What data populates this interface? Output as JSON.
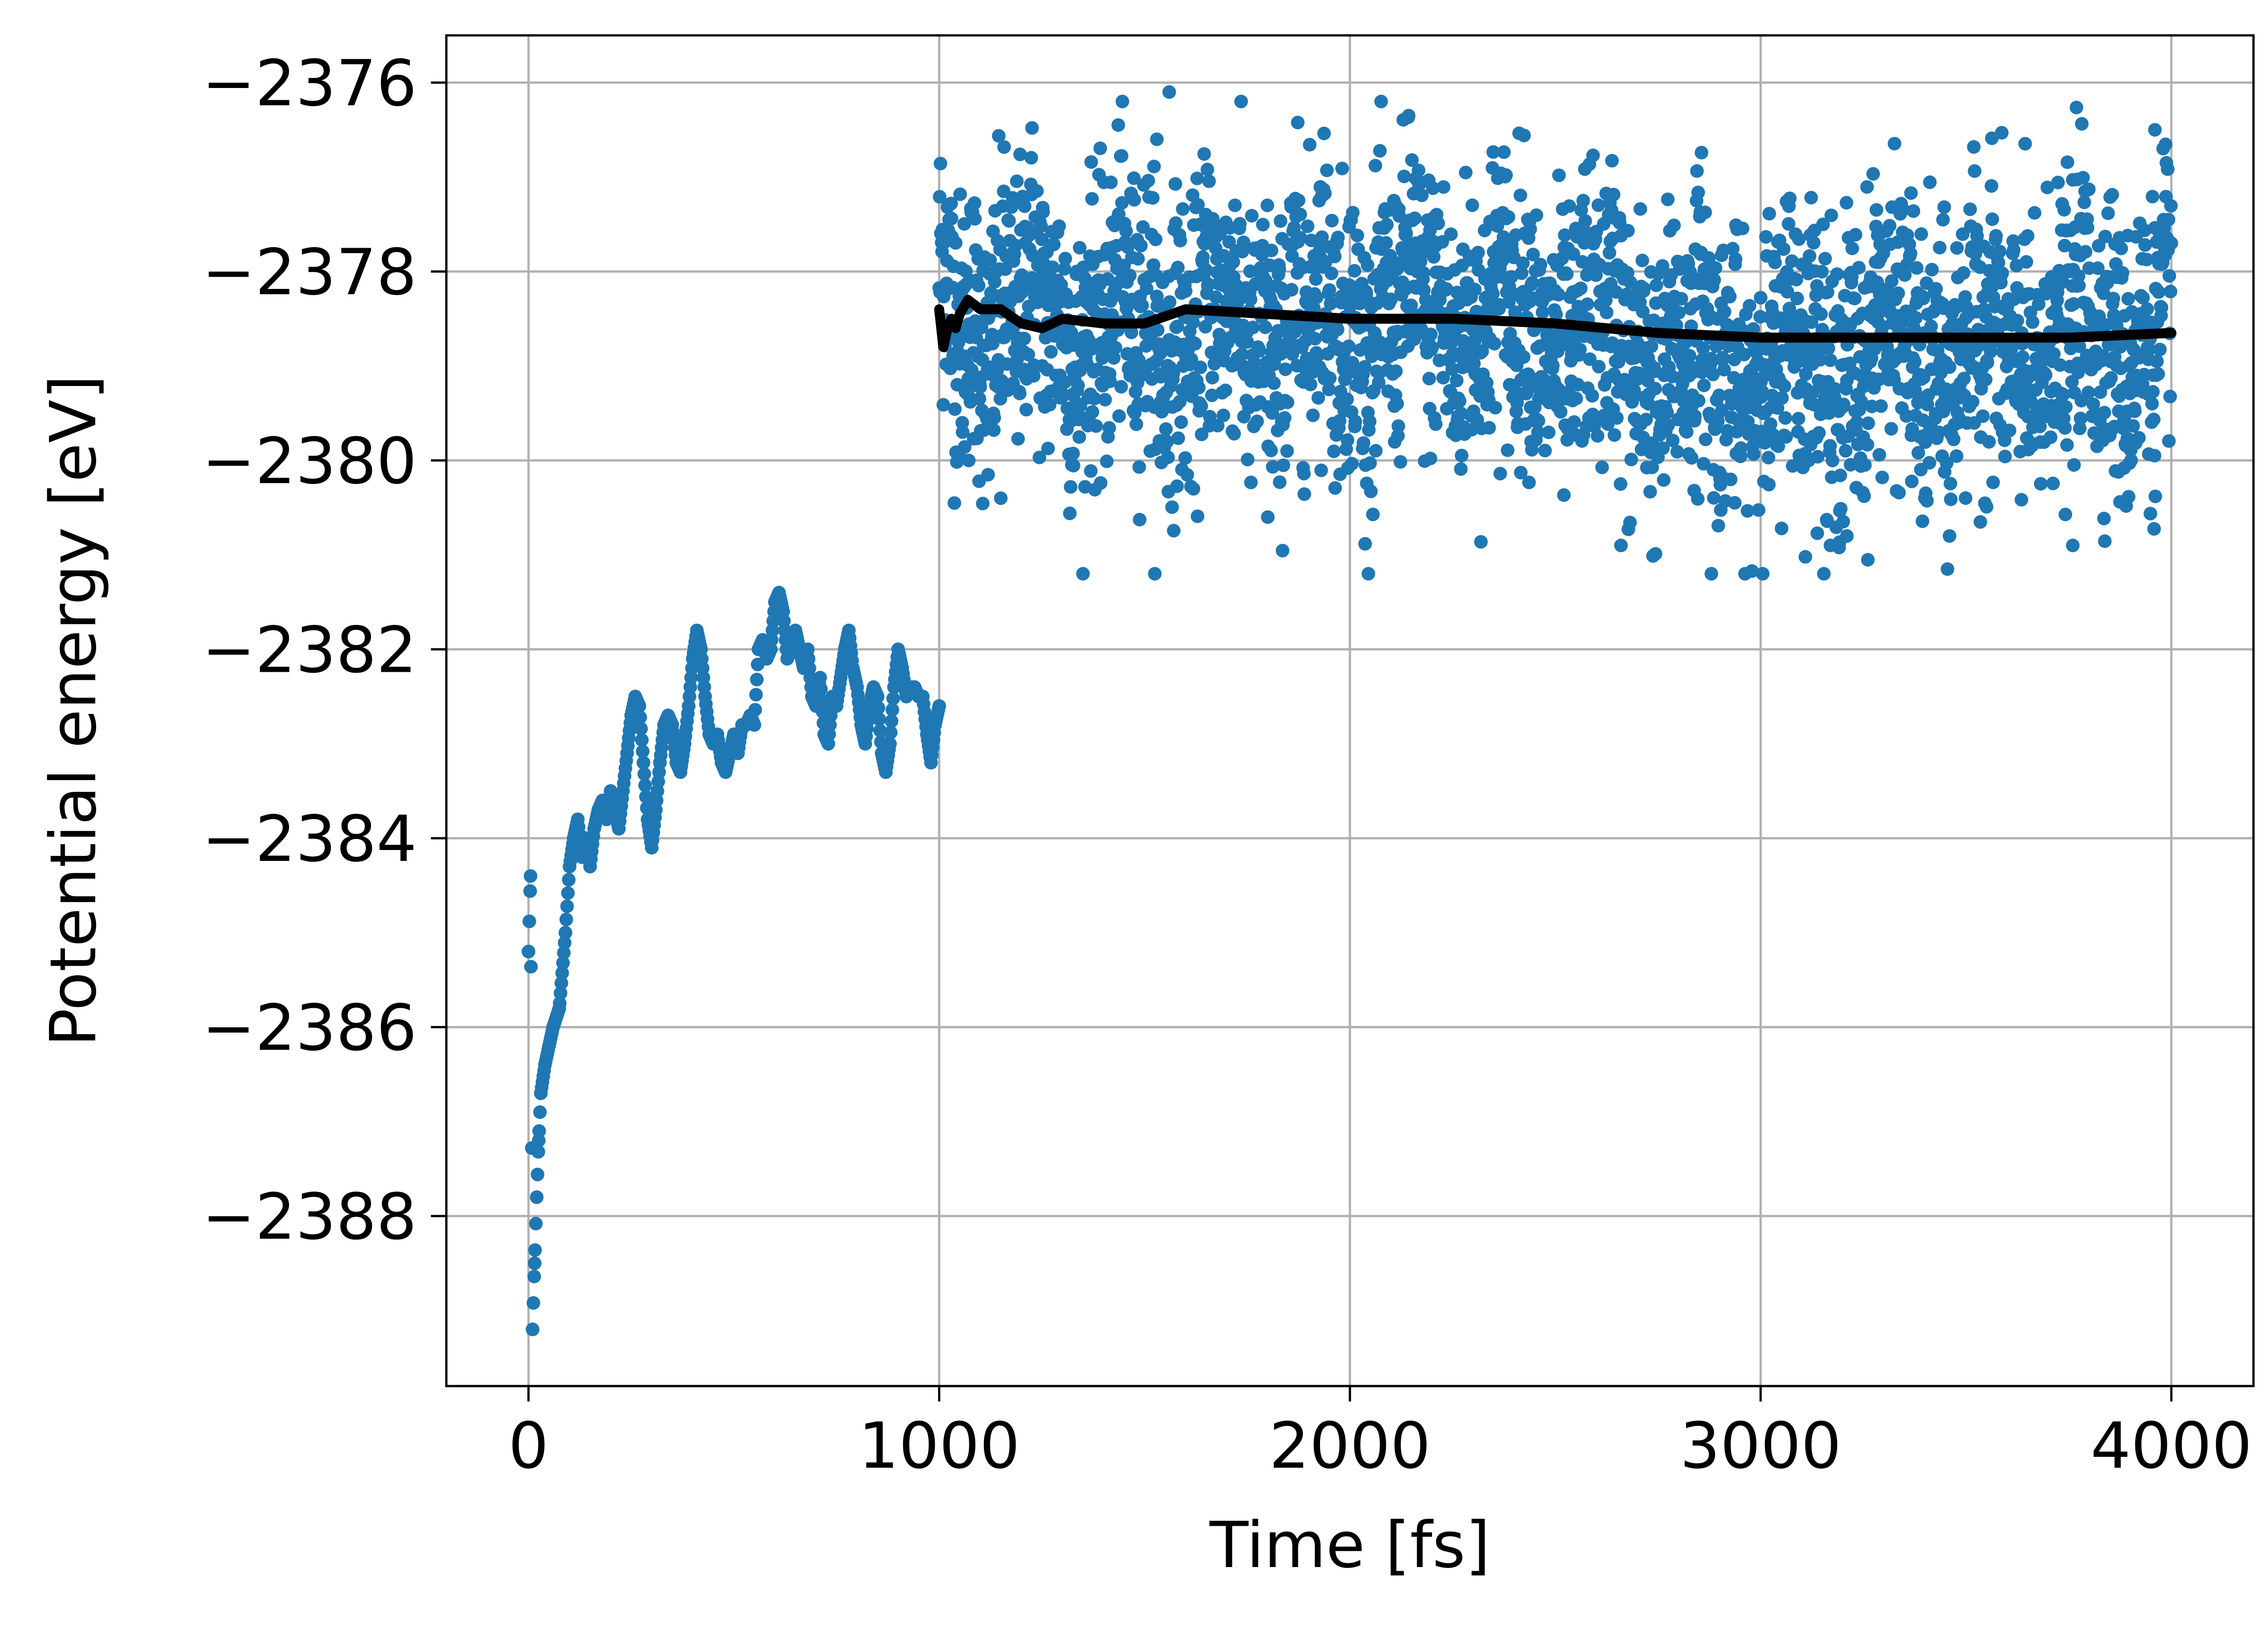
{
  "chart_data": {
    "type": "scatter",
    "title": "",
    "xlabel": "Time [fs]",
    "ylabel": "Potential energy [eV]",
    "xlim": [
      -200,
      4200
    ],
    "ylim": [
      -2389.8,
      -2375.5
    ],
    "xticks": [
      0,
      1000,
      2000,
      3000,
      4000
    ],
    "yticks": [
      -2388,
      -2386,
      -2384,
      -2382,
      -2380,
      -2378,
      -2376
    ],
    "xtick_labels": [
      "0",
      "1000",
      "2000",
      "3000",
      "4000"
    ],
    "ytick_labels": [
      "−2388",
      "−2386",
      "−2384",
      "−2382",
      "−2380",
      "−2378",
      "−2376"
    ],
    "grid": true,
    "legend": "none",
    "series": [
      {
        "kind": "equilibration-points",
        "color": "#1f77b4",
        "x_range": [
          0,
          1000
        ],
        "points": [
          [
            0,
            -2385.2
          ],
          [
            5,
            -2384.4
          ],
          [
            10,
            -2389.2
          ],
          [
            15,
            -2388.5
          ],
          [
            20,
            -2387.8
          ],
          [
            25,
            -2387.2
          ],
          [
            30,
            -2386.7
          ],
          [
            40,
            -2386.4
          ],
          [
            50,
            -2386.2
          ],
          [
            60,
            -2386.0
          ],
          [
            75,
            -2385.8
          ],
          [
            90,
            -2385.0
          ],
          [
            100,
            -2384.3
          ],
          [
            110,
            -2384.0
          ],
          [
            120,
            -2383.8
          ],
          [
            130,
            -2384.2
          ],
          [
            140,
            -2384.0
          ],
          [
            150,
            -2384.3
          ],
          [
            160,
            -2383.9
          ],
          [
            170,
            -2383.7
          ],
          [
            180,
            -2383.6
          ],
          [
            190,
            -2383.8
          ],
          [
            200,
            -2383.5
          ],
          [
            210,
            -2383.7
          ],
          [
            220,
            -2383.9
          ],
          [
            230,
            -2383.5
          ],
          [
            240,
            -2383.1
          ],
          [
            250,
            -2382.7
          ],
          [
            260,
            -2382.5
          ],
          [
            270,
            -2382.6
          ],
          [
            280,
            -2383.2
          ],
          [
            290,
            -2383.8
          ],
          [
            300,
            -2384.1
          ],
          [
            310,
            -2383.7
          ],
          [
            320,
            -2383.2
          ],
          [
            330,
            -2382.8
          ],
          [
            340,
            -2382.7
          ],
          [
            350,
            -2382.8
          ],
          [
            360,
            -2383.2
          ],
          [
            370,
            -2383.3
          ],
          [
            380,
            -2383.0
          ],
          [
            390,
            -2382.6
          ],
          [
            400,
            -2382.1
          ],
          [
            410,
            -2381.8
          ],
          [
            420,
            -2382.0
          ],
          [
            430,
            -2382.5
          ],
          [
            440,
            -2382.9
          ],
          [
            450,
            -2383.0
          ],
          [
            460,
            -2382.9
          ],
          [
            470,
            -2383.2
          ],
          [
            480,
            -2383.3
          ],
          [
            490,
            -2383.1
          ],
          [
            500,
            -2382.9
          ],
          [
            510,
            -2383.1
          ],
          [
            520,
            -2382.8
          ],
          [
            530,
            -2382.8
          ],
          [
            540,
            -2382.7
          ],
          [
            550,
            -2382.8
          ],
          [
            560,
            -2382.0
          ],
          [
            570,
            -2381.9
          ],
          [
            580,
            -2382.1
          ],
          [
            590,
            -2382.0
          ],
          [
            600,
            -2381.5
          ],
          [
            610,
            -2381.4
          ],
          [
            620,
            -2381.6
          ],
          [
            630,
            -2382.1
          ],
          [
            640,
            -2382.0
          ],
          [
            650,
            -2381.8
          ],
          [
            660,
            -2382.0
          ],
          [
            670,
            -2382.2
          ],
          [
            680,
            -2382.0
          ],
          [
            690,
            -2382.5
          ],
          [
            700,
            -2382.6
          ],
          [
            710,
            -2382.3
          ],
          [
            720,
            -2382.9
          ],
          [
            730,
            -2383.0
          ],
          [
            740,
            -2382.5
          ],
          [
            750,
            -2382.6
          ],
          [
            760,
            -2382.3
          ],
          [
            770,
            -2382.0
          ],
          [
            780,
            -2381.8
          ],
          [
            790,
            -2382.2
          ],
          [
            800,
            -2382.4
          ],
          [
            810,
            -2382.8
          ],
          [
            820,
            -2383.0
          ],
          [
            830,
            -2382.6
          ],
          [
            840,
            -2382.4
          ],
          [
            850,
            -2382.5
          ],
          [
            860,
            -2383.1
          ],
          [
            870,
            -2383.3
          ],
          [
            880,
            -2383.0
          ],
          [
            890,
            -2382.4
          ],
          [
            900,
            -2382.0
          ],
          [
            910,
            -2382.2
          ],
          [
            920,
            -2382.5
          ],
          [
            930,
            -2382.4
          ],
          [
            940,
            -2382.4
          ],
          [
            950,
            -2382.5
          ],
          [
            960,
            -2382.5
          ],
          [
            970,
            -2382.9
          ],
          [
            980,
            -2383.2
          ],
          [
            990,
            -2382.8
          ],
          [
            1000,
            -2382.6
          ]
        ]
      },
      {
        "kind": "production-points",
        "color": "#1f77b4",
        "x_range": [
          1000,
          4000
        ],
        "trend": [
          [
            1000,
            -2378.4
          ],
          [
            1250,
            -2378.5
          ],
          [
            1500,
            -2378.6
          ],
          [
            1750,
            -2378.6
          ],
          [
            2000,
            -2378.5
          ],
          [
            2250,
            -2378.4
          ],
          [
            2500,
            -2378.6
          ],
          [
            2750,
            -2378.9
          ],
          [
            3000,
            -2379.0
          ],
          [
            3250,
            -2378.8
          ],
          [
            3500,
            -2378.9
          ],
          [
            3750,
            -2378.7
          ],
          [
            4000,
            -2378.6
          ]
        ],
        "spread": 0.75,
        "extremes": [
          [
            1560,
            -2376.1
          ],
          [
            3960,
            -2376.5
          ],
          [
            1530,
            -2376.6
          ],
          [
            2880,
            -2381.2
          ],
          [
            3760,
            -2380.9
          ],
          [
            3170,
            -2380.9
          ],
          [
            2660,
            -2380.9
          ],
          [
            3210,
            -2380.8
          ],
          [
            1150,
            -2380.4
          ],
          [
            1800,
            -2380.6
          ],
          [
            3460,
            -2380.8
          ]
        ]
      },
      {
        "kind": "running-average-line",
        "color": "#000000",
        "points": [
          [
            1000,
            -2378.4
          ],
          [
            1010,
            -2378.8
          ],
          [
            1020,
            -2378.6
          ],
          [
            1030,
            -2378.5
          ],
          [
            1040,
            -2378.6
          ],
          [
            1050,
            -2378.45
          ],
          [
            1070,
            -2378.3
          ],
          [
            1100,
            -2378.4
          ],
          [
            1150,
            -2378.4
          ],
          [
            1200,
            -2378.55
          ],
          [
            1250,
            -2378.6
          ],
          [
            1300,
            -2378.5
          ],
          [
            1400,
            -2378.55
          ],
          [
            1500,
            -2378.55
          ],
          [
            1600,
            -2378.4
          ],
          [
            1800,
            -2378.45
          ],
          [
            2000,
            -2378.5
          ],
          [
            2250,
            -2378.5
          ],
          [
            2500,
            -2378.55
          ],
          [
            2750,
            -2378.65
          ],
          [
            3000,
            -2378.7
          ],
          [
            3250,
            -2378.7
          ],
          [
            3500,
            -2378.7
          ],
          [
            3750,
            -2378.7
          ],
          [
            4000,
            -2378.65
          ]
        ]
      }
    ]
  }
}
